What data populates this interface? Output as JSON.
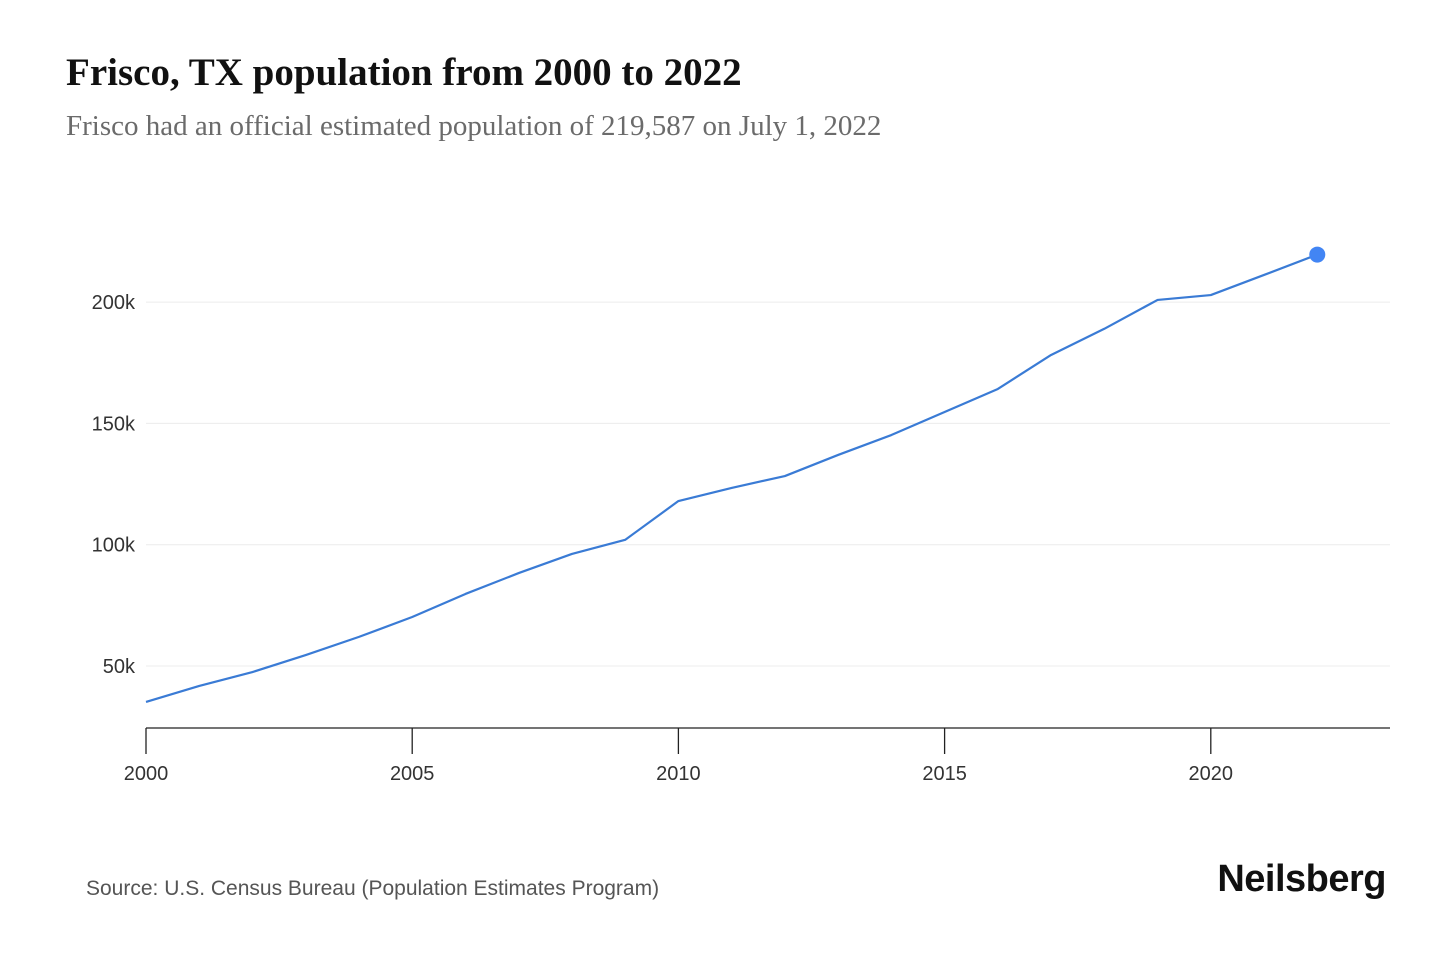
{
  "chart_data": {
    "type": "line",
    "title": "Frisco, TX population from 2000 to 2022",
    "subtitle": "Frisco had an official estimated population of 219,587 on July 1, 2022",
    "xlabel": "",
    "ylabel": "",
    "x": [
      2000,
      2001,
      2002,
      2003,
      2004,
      2005,
      2006,
      2007,
      2008,
      2009,
      2010,
      2011,
      2012,
      2013,
      2014,
      2015,
      2016,
      2017,
      2018,
      2019,
      2020,
      2021,
      2022
    ],
    "series": [
      {
        "name": "Population",
        "color": "#3a7bd5",
        "values": [
          35200,
          41800,
          47500,
          54500,
          62000,
          70200,
          79700,
          88300,
          96200,
          102000,
          118000,
          123400,
          128300,
          137000,
          145200,
          154700,
          164200,
          178200,
          189000,
          200900,
          202900,
          211200,
          219587
        ]
      }
    ],
    "xlim": [
      2000,
      2023.4
    ],
    "ylim": [
      24400,
      250000
    ],
    "xticks": [
      2000,
      2005,
      2010,
      2015,
      2020
    ],
    "xtick_labels": [
      "2000",
      "2005",
      "2010",
      "2015",
      "2020"
    ],
    "yticks": [
      50000,
      100000,
      150000,
      200000
    ],
    "ytick_labels": [
      "50k",
      "100k",
      "150k",
      "200k"
    ],
    "grid": true,
    "highlight_last_point": true,
    "source": "Source: U.S. Census Bureau (Population Estimates Program)",
    "logo": "Neilsberg"
  }
}
